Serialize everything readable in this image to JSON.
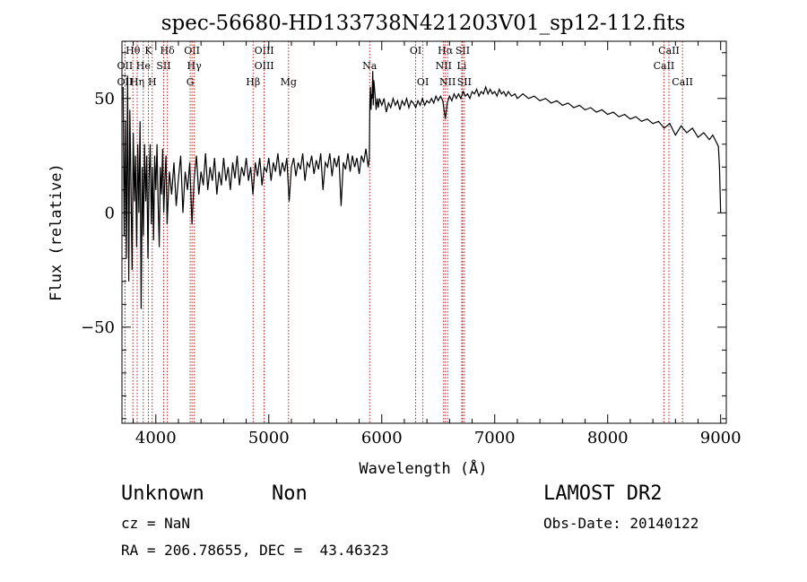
{
  "chart_data": {
    "type": "line",
    "title": "spec-56680-HD133738N421203V01_sp12-112.fits",
    "xlabel": "Wavelength (Å)",
    "ylabel": "Flux (relative)",
    "xlim": [
      3700,
      9050
    ],
    "ylim": [
      -92,
      75
    ],
    "xticks": [
      4000,
      5000,
      6000,
      7000,
      8000,
      9000
    ],
    "yticks": [
      -50,
      0,
      50
    ],
    "ytick_labels": [
      "−50",
      "0",
      "50"
    ],
    "grid": false,
    "series": [
      {
        "values": [
          [
            3710,
            55
          ],
          [
            3720,
            -10
          ],
          [
            3730,
            40
          ],
          [
            3740,
            -20
          ],
          [
            3750,
            60
          ],
          [
            3760,
            -30
          ],
          [
            3770,
            45
          ],
          [
            3780,
            10
          ],
          [
            3790,
            -25
          ],
          [
            3800,
            35
          ],
          [
            3810,
            5
          ],
          [
            3820,
            25
          ],
          [
            3830,
            -15
          ],
          [
            3840,
            30
          ],
          [
            3850,
            0
          ],
          [
            3860,
            40
          ],
          [
            3870,
            -42
          ],
          [
            3880,
            20
          ],
          [
            3890,
            -10
          ],
          [
            3900,
            30
          ],
          [
            3910,
            5
          ],
          [
            3920,
            25
          ],
          [
            3930,
            -20
          ],
          [
            3940,
            15
          ],
          [
            3950,
            30
          ],
          [
            3960,
            -5
          ],
          [
            3970,
            20
          ],
          [
            3980,
            -12
          ],
          [
            3990,
            25
          ],
          [
            4000,
            10
          ],
          [
            4010,
            30
          ],
          [
            4020,
            5
          ],
          [
            4030,
            -15
          ],
          [
            4040,
            20
          ],
          [
            4050,
            8
          ],
          [
            4060,
            28
          ],
          [
            4070,
            0
          ],
          [
            4080,
            15
          ],
          [
            4090,
            25
          ],
          [
            4100,
            -5
          ],
          [
            4120,
            18
          ],
          [
            4140,
            8
          ],
          [
            4160,
            22
          ],
          [
            4180,
            3
          ],
          [
            4200,
            15
          ],
          [
            4220,
            25
          ],
          [
            4240,
            0
          ],
          [
            4260,
            18
          ],
          [
            4280,
            10
          ],
          [
            4300,
            22
          ],
          [
            4320,
            -5
          ],
          [
            4340,
            15
          ],
          [
            4360,
            25
          ],
          [
            4380,
            8
          ],
          [
            4400,
            18
          ],
          [
            4420,
            12
          ],
          [
            4440,
            26
          ],
          [
            4460,
            10
          ],
          [
            4480,
            20
          ],
          [
            4500,
            14
          ],
          [
            4520,
            24
          ],
          [
            4540,
            8
          ],
          [
            4560,
            18
          ],
          [
            4580,
            12
          ],
          [
            4600,
            24
          ],
          [
            4620,
            14
          ],
          [
            4640,
            20
          ],
          [
            4660,
            10
          ],
          [
            4680,
            22
          ],
          [
            4700,
            15
          ],
          [
            4720,
            25
          ],
          [
            4740,
            12
          ],
          [
            4760,
            20
          ],
          [
            4780,
            16
          ],
          [
            4800,
            24
          ],
          [
            4820,
            14
          ],
          [
            4840,
            20
          ],
          [
            4860,
            8
          ],
          [
            4880,
            22
          ],
          [
            4900,
            16
          ],
          [
            4920,
            24
          ],
          [
            4940,
            12
          ],
          [
            4960,
            20
          ],
          [
            4980,
            18
          ],
          [
            5000,
            24
          ],
          [
            5020,
            14
          ],
          [
            5040,
            22
          ],
          [
            5060,
            18
          ],
          [
            5080,
            26
          ],
          [
            5100,
            16
          ],
          [
            5120,
            22
          ],
          [
            5140,
            18
          ],
          [
            5160,
            24
          ],
          [
            5180,
            5
          ],
          [
            5200,
            20
          ],
          [
            5220,
            24
          ],
          [
            5240,
            16
          ],
          [
            5260,
            22
          ],
          [
            5280,
            19
          ],
          [
            5300,
            26
          ],
          [
            5320,
            14
          ],
          [
            5340,
            22
          ],
          [
            5360,
            20
          ],
          [
            5380,
            25
          ],
          [
            5400,
            17
          ],
          [
            5420,
            23
          ],
          [
            5440,
            19
          ],
          [
            5460,
            26
          ],
          [
            5480,
            10
          ],
          [
            5500,
            22
          ],
          [
            5520,
            20
          ],
          [
            5540,
            26
          ],
          [
            5560,
            16
          ],
          [
            5580,
            24
          ],
          [
            5600,
            20
          ],
          [
            5620,
            25
          ],
          [
            5640,
            3
          ],
          [
            5660,
            22
          ],
          [
            5680,
            19
          ],
          [
            5700,
            26
          ],
          [
            5720,
            18
          ],
          [
            5740,
            25
          ],
          [
            5760,
            20
          ],
          [
            5780,
            24
          ],
          [
            5800,
            17
          ],
          [
            5820,
            25
          ],
          [
            5840,
            22
          ],
          [
            5860,
            28
          ],
          [
            5880,
            20
          ],
          [
            5890,
            24
          ],
          [
            5895,
            48
          ],
          [
            5900,
            55
          ],
          [
            5905,
            45
          ],
          [
            5910,
            52
          ],
          [
            5915,
            50
          ],
          [
            5920,
            62
          ],
          [
            5925,
            47
          ],
          [
            5930,
            58
          ],
          [
            5940,
            52
          ],
          [
            5950,
            45
          ],
          [
            5960,
            50
          ],
          [
            5970,
            46
          ],
          [
            5980,
            50
          ],
          [
            6000,
            47
          ],
          [
            6020,
            50
          ],
          [
            6040,
            44
          ],
          [
            6060,
            48
          ],
          [
            6080,
            46
          ],
          [
            6100,
            50
          ],
          [
            6120,
            47
          ],
          [
            6140,
            49
          ],
          [
            6160,
            45
          ],
          [
            6180,
            49
          ],
          [
            6200,
            47
          ],
          [
            6220,
            50
          ],
          [
            6240,
            46
          ],
          [
            6260,
            49
          ],
          [
            6280,
            48
          ],
          [
            6300,
            46
          ],
          [
            6320,
            49
          ],
          [
            6340,
            47
          ],
          [
            6360,
            50
          ],
          [
            6380,
            47
          ],
          [
            6400,
            49
          ],
          [
            6420,
            48
          ],
          [
            6440,
            50
          ],
          [
            6460,
            48
          ],
          [
            6480,
            51
          ],
          [
            6500,
            49
          ],
          [
            6520,
            51
          ],
          [
            6540,
            49
          ],
          [
            6563,
            41
          ],
          [
            6580,
            48
          ],
          [
            6600,
            51
          ],
          [
            6620,
            49
          ],
          [
            6640,
            52
          ],
          [
            6660,
            50
          ],
          [
            6680,
            52
          ],
          [
            6700,
            50
          ],
          [
            6720,
            53
          ],
          [
            6740,
            51
          ],
          [
            6760,
            52
          ],
          [
            6780,
            50
          ],
          [
            6800,
            53
          ],
          [
            6820,
            52
          ],
          [
            6840,
            54
          ],
          [
            6860,
            51
          ],
          [
            6880,
            53
          ],
          [
            6900,
            52
          ],
          [
            6920,
            55
          ],
          [
            6940,
            52
          ],
          [
            6960,
            54
          ],
          [
            6980,
            52
          ],
          [
            7000,
            53
          ],
          [
            7020,
            51
          ],
          [
            7040,
            54
          ],
          [
            7060,
            52
          ],
          [
            7080,
            53
          ],
          [
            7100,
            51
          ],
          [
            7120,
            53
          ],
          [
            7150,
            51
          ],
          [
            7180,
            52
          ],
          [
            7200,
            50
          ],
          [
            7250,
            52
          ],
          [
            7300,
            50
          ],
          [
            7350,
            51
          ],
          [
            7400,
            49
          ],
          [
            7450,
            50
          ],
          [
            7500,
            48
          ],
          [
            7550,
            49
          ],
          [
            7600,
            47
          ],
          [
            7650,
            48
          ],
          [
            7700,
            46
          ],
          [
            7750,
            47
          ],
          [
            7800,
            45
          ],
          [
            7850,
            46
          ],
          [
            7900,
            44
          ],
          [
            7950,
            45
          ],
          [
            8000,
            43
          ],
          [
            8050,
            44
          ],
          [
            8100,
            42
          ],
          [
            8150,
            43
          ],
          [
            8200,
            41
          ],
          [
            8250,
            42
          ],
          [
            8300,
            40
          ],
          [
            8350,
            41
          ],
          [
            8400,
            39
          ],
          [
            8450,
            40
          ],
          [
            8500,
            37
          ],
          [
            8550,
            39
          ],
          [
            8600,
            34
          ],
          [
            8650,
            38
          ],
          [
            8700,
            35
          ],
          [
            8750,
            37
          ],
          [
            8800,
            33
          ],
          [
            8850,
            35
          ],
          [
            8900,
            32
          ],
          [
            8930,
            34
          ],
          [
            8960,
            31
          ],
          [
            8980,
            29
          ],
          [
            8990,
            20
          ],
          [
            9000,
            0
          ]
        ]
      }
    ],
    "spectral_lines": [
      {
        "label": "Hθ",
        "x": 3797,
        "row": 0
      },
      {
        "label": "K",
        "x": 3934,
        "row": 0
      },
      {
        "label": "Hδ",
        "x": 4102,
        "row": 0
      },
      {
        "label": "OII",
        "x": 4320,
        "row": 0
      },
      {
        "label": "OIII",
        "x": 4959,
        "row": 0
      },
      {
        "label": "Na",
        "x": 5893,
        "row": 1
      },
      {
        "label": "OI",
        "x": 6300,
        "row": 0
      },
      {
        "label": "Hα",
        "x": 6563,
        "row": 0
      },
      {
        "label": "SII",
        "x": 6716,
        "row": 0
      },
      {
        "label": "CaII",
        "x": 8542,
        "row": 0
      },
      {
        "label": "OII",
        "x": 3727,
        "row": 1
      },
      {
        "label": "He",
        "x": 3889,
        "row": 1
      },
      {
        "label": "SII",
        "x": 4069,
        "row": 1
      },
      {
        "label": "Hγ",
        "x": 4340,
        "row": 1
      },
      {
        "label": "OIII",
        "x": 4959,
        "row": 1
      },
      {
        "label": "NII",
        "x": 6548,
        "row": 1
      },
      {
        "label": "Li",
        "x": 6708,
        "row": 1
      },
      {
        "label": "CaII",
        "x": 8498,
        "row": 1
      },
      {
        "label": "OII",
        "x": 3727,
        "row": 2
      },
      {
        "label": "Hη",
        "x": 3835,
        "row": 2
      },
      {
        "label": "H",
        "x": 3968,
        "row": 2
      },
      {
        "label": "G",
        "x": 4304,
        "row": 2
      },
      {
        "label": "Hβ",
        "x": 4861,
        "row": 2
      },
      {
        "label": "Mg",
        "x": 5175,
        "row": 2
      },
      {
        "label": "OI",
        "x": 6364,
        "row": 2
      },
      {
        "label": "NII",
        "x": 6583,
        "row": 2
      },
      {
        "label": "SII",
        "x": 6731,
        "row": 2
      },
      {
        "label": "CaII",
        "x": 8662,
        "row": 2
      }
    ]
  },
  "info": {
    "class": "Unknown",
    "subclass": "Non",
    "survey": "LAMOST DR2",
    "cz": "cz = NaN",
    "obs_date": "Obs-Date: 20140122",
    "coords": "RA = 206.78655, DEC =  43.46323"
  },
  "colors": {
    "spectrum": "#000000",
    "line_marker": "#b22222",
    "axes": "#000000"
  }
}
